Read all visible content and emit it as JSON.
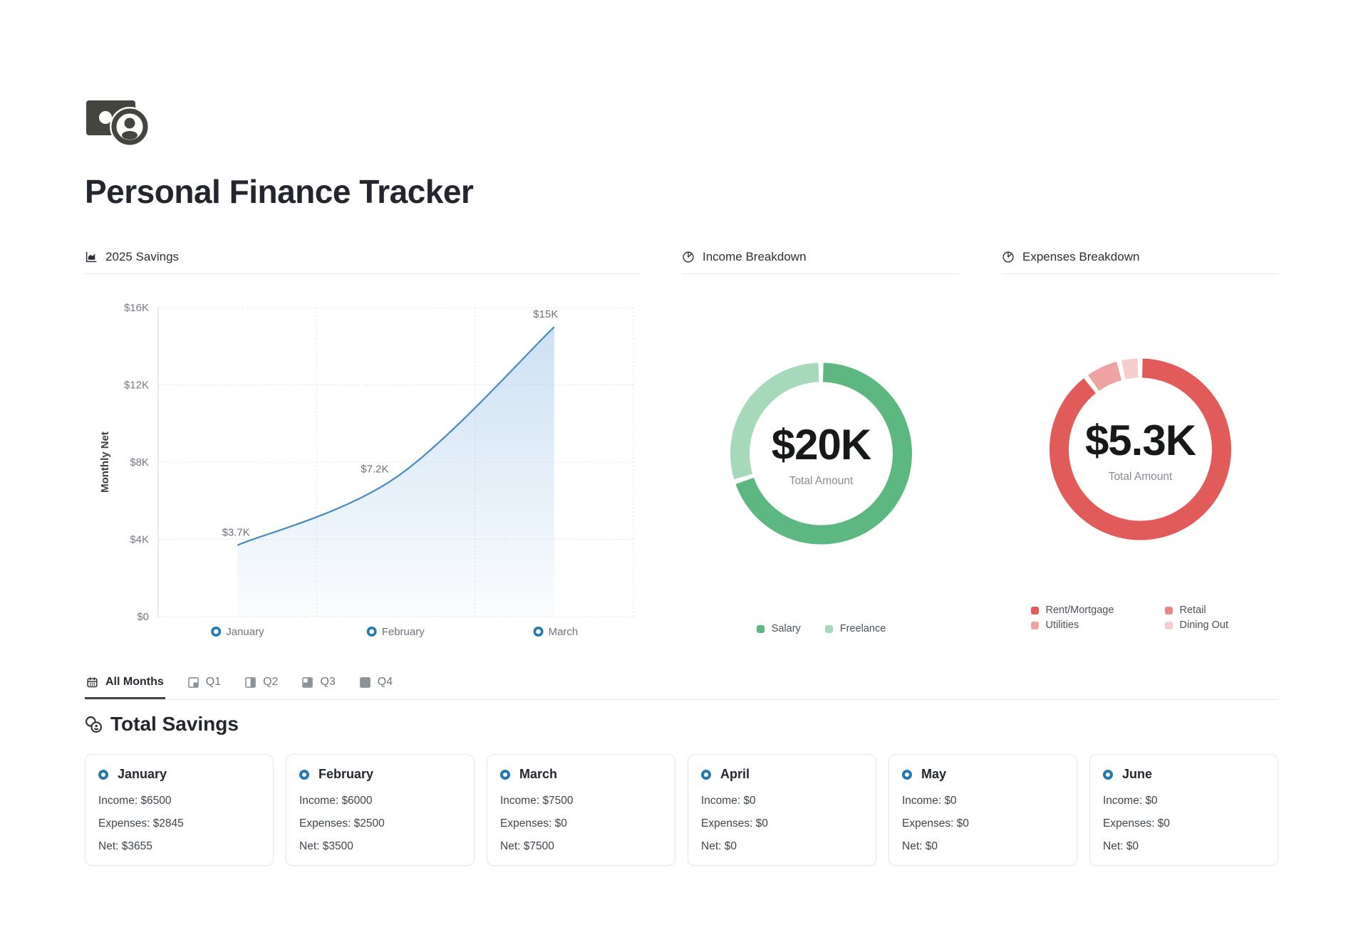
{
  "header": {
    "title": "Personal Finance Tracker"
  },
  "panels": {
    "savings": {
      "title": "2025 Savings"
    },
    "income": {
      "title": "Income Breakdown"
    },
    "expenses": {
      "title": "Expenses Breakdown"
    }
  },
  "chart_data": [
    {
      "id": "savings",
      "type": "area",
      "title": "2025 Savings",
      "ylabel": "Monthly Net",
      "x": [
        "January",
        "February",
        "March"
      ],
      "values": [
        3700,
        7200,
        15000
      ],
      "point_labels": [
        "$3.7K",
        "$7.2K",
        "$15K"
      ],
      "ylim": [
        0,
        16000
      ],
      "yticks": [
        {
          "value": 16000,
          "label": "$16K"
        },
        {
          "value": 12000,
          "label": "$12K"
        },
        {
          "value": 8000,
          "label": "$8K"
        },
        {
          "value": 4000,
          "label": "$4K"
        },
        {
          "value": 0,
          "label": "$0"
        }
      ],
      "grid": "dotted",
      "line_color": "#4a8cc2",
      "marker_color": "#2678b2",
      "area_color": "#7cafe1"
    },
    {
      "id": "income",
      "type": "pie",
      "title": "Income Breakdown",
      "center_value": "$20K",
      "center_label": "Total Amount",
      "legend_position": "bottom",
      "segments": [
        {
          "name": "Salary",
          "value": 14000,
          "color": "#5cb880"
        },
        {
          "name": "Freelance",
          "value": 6000,
          "color": "#a6d9ba"
        }
      ]
    },
    {
      "id": "expenses",
      "type": "pie",
      "title": "Expenses Breakdown",
      "center_value": "$5.3K",
      "center_label": "Total Amount",
      "legend_position": "bottom",
      "segments": [
        {
          "name": "Rent/Mortgage",
          "value": 4800,
          "color": "#e15b5b"
        },
        {
          "name": "Retail",
          "value": 0,
          "color": "#e98585"
        },
        {
          "name": "Utilities",
          "value": 345,
          "color": "#efa2a2"
        },
        {
          "name": "Dining Out",
          "value": 200,
          "color": "#f6cdcd"
        }
      ]
    }
  ],
  "tabs": [
    {
      "id": "all",
      "label": "All Months",
      "icon": "calendar-icon",
      "active": true
    },
    {
      "id": "q1",
      "label": "Q1",
      "icon": "quarter-1-icon",
      "active": false
    },
    {
      "id": "q2",
      "label": "Q2",
      "icon": "quarter-2-icon",
      "active": false
    },
    {
      "id": "q3",
      "label": "Q3",
      "icon": "quarter-3-icon",
      "active": false
    },
    {
      "id": "q4",
      "label": "Q4",
      "icon": "quarter-4-icon",
      "active": false
    }
  ],
  "total_savings": {
    "title": "Total Savings",
    "months": [
      {
        "name": "January",
        "income": "Income: $6500",
        "expenses": "Expenses: $2845",
        "net": "Net: $3655"
      },
      {
        "name": "February",
        "income": "Income: $6000",
        "expenses": "Expenses: $2500",
        "net": "Net: $3500"
      },
      {
        "name": "March",
        "income": "Income: $7500",
        "expenses": "Expenses: $0",
        "net": "Net: $7500"
      },
      {
        "name": "April",
        "income": "Income: $0",
        "expenses": "Expenses: $0",
        "net": "Net: $0"
      },
      {
        "name": "May",
        "income": "Income: $0",
        "expenses": "Expenses: $0",
        "net": "Net: $0"
      },
      {
        "name": "June",
        "income": "Income: $0",
        "expenses": "Expenses: $0",
        "net": "Net: $0"
      }
    ]
  }
}
